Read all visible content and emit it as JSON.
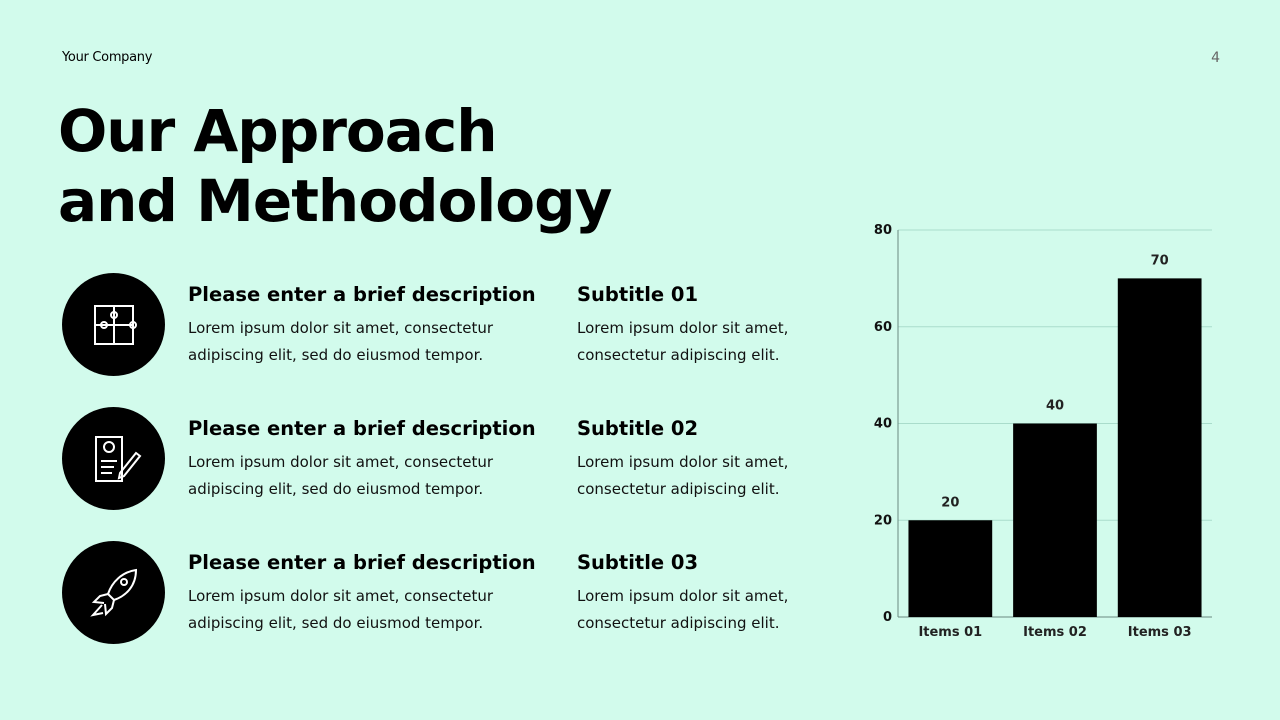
{
  "header": {
    "company": "Your Company",
    "page_number": 4
  },
  "title_lines": [
    "Our Approach",
    "and Methodology"
  ],
  "items": [
    {
      "heading": "Please enter a brief description",
      "text_lines": [
        "Lorem ipsum dolor sit amet, consectetur",
        "adipiscing elit, sed do eiusmod tempor."
      ],
      "subtitle": "Subtitle 01",
      "subtitle_lines": [
        "Lorem ipsum dolor sit amet,",
        "consectetur adipiscing elit."
      ]
    },
    {
      "heading": "Please enter a brief description",
      "text_lines": [
        "Lorem ipsum dolor sit amet, consectetur",
        "adipiscing elit, sed do eiusmod tempor."
      ],
      "subtitle": "Subtitle 02",
      "subtitle_lines": [
        "Lorem ipsum dolor sit amet,",
        "consectetur adipiscing elit."
      ]
    },
    {
      "heading": "Please enter a brief description",
      "text_lines": [
        "Lorem ipsum dolor sit amet, consectetur",
        "adipiscing elit, sed do eiusmod tempor."
      ],
      "subtitle": "Subtitle 03",
      "subtitle_lines": [
        "Lorem ipsum dolor sit amet,",
        "consectetur adipiscing elit."
      ]
    }
  ],
  "chart_data": {
    "type": "bar",
    "categories": [
      "Items 01",
      "Items 02",
      "Items 03"
    ],
    "values": [
      20,
      40,
      70
    ],
    "color": "#000000",
    "ylim": [
      0,
      80
    ],
    "yticks": [
      0,
      20,
      40,
      60,
      80
    ],
    "grid": true
  }
}
